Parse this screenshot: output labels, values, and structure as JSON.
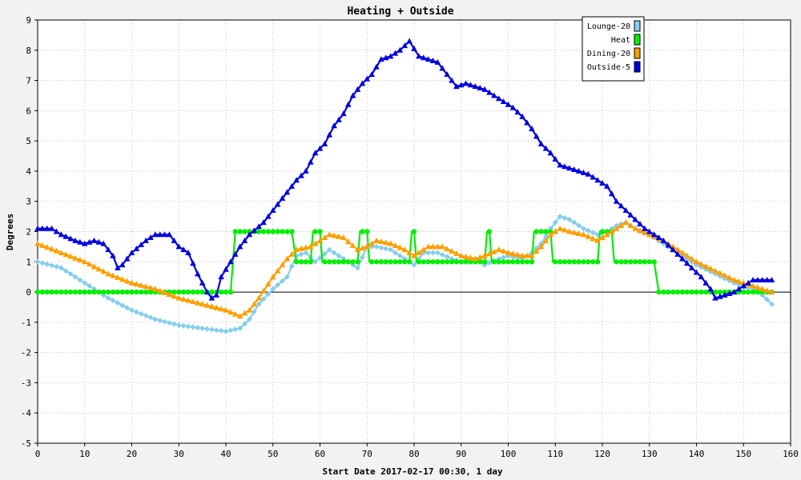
{
  "chart_data": {
    "type": "line",
    "title": "Heating + Outside",
    "xlabel": "Start Date 2017-02-17 00:30, 1 day",
    "ylabel": "Degrees",
    "xlim": [
      0,
      160
    ],
    "ylim": [
      -5,
      9
    ],
    "xticks": [
      0,
      10,
      20,
      30,
      40,
      50,
      60,
      70,
      80,
      90,
      100,
      110,
      120,
      130,
      140,
      150,
      160
    ],
    "yticks": [
      -5,
      -4,
      -3,
      -2,
      -1,
      0,
      1,
      2,
      3,
      4,
      5,
      6,
      7,
      8,
      9
    ],
    "grid": true,
    "legend_position": "top-right",
    "series": [
      {
        "name": "Lounge-20",
        "color": "#87ceeb",
        "marker": "diamond",
        "points": [
          [
            0,
            1.0
          ],
          [
            5,
            0.8
          ],
          [
            10,
            0.3
          ],
          [
            15,
            -0.2
          ],
          [
            20,
            -0.6
          ],
          [
            25,
            -0.9
          ],
          [
            30,
            -1.1
          ],
          [
            35,
            -1.2
          ],
          [
            40,
            -1.3
          ],
          [
            43,
            -1.2
          ],
          [
            45,
            -0.9
          ],
          [
            47,
            -0.4
          ],
          [
            50,
            0.1
          ],
          [
            53,
            0.5
          ],
          [
            55,
            1.2
          ],
          [
            57,
            1.3
          ],
          [
            59,
            1.0
          ],
          [
            62,
            1.4
          ],
          [
            65,
            1.1
          ],
          [
            68,
            0.8
          ],
          [
            70,
            1.5
          ],
          [
            72,
            1.5
          ],
          [
            75,
            1.4
          ],
          [
            78,
            1.1
          ],
          [
            80,
            0.9
          ],
          [
            82,
            1.3
          ],
          [
            85,
            1.3
          ],
          [
            88,
            1.1
          ],
          [
            90,
            1.0
          ],
          [
            93,
            1.1
          ],
          [
            95,
            0.9
          ],
          [
            98,
            1.1
          ],
          [
            100,
            1.2
          ],
          [
            103,
            1.1
          ],
          [
            105,
            1.3
          ],
          [
            107,
            1.6
          ],
          [
            109,
            2.1
          ],
          [
            111,
            2.5
          ],
          [
            113,
            2.4
          ],
          [
            116,
            2.1
          ],
          [
            119,
            1.9
          ],
          [
            121,
            2.0
          ],
          [
            123,
            2.2
          ],
          [
            125,
            2.3
          ],
          [
            128,
            2.0
          ],
          [
            130,
            1.9
          ],
          [
            133,
            1.6
          ],
          [
            136,
            1.3
          ],
          [
            140,
            0.9
          ],
          [
            144,
            0.6
          ],
          [
            148,
            0.3
          ],
          [
            152,
            0.1
          ],
          [
            154,
            -0.1
          ],
          [
            156,
            -0.4
          ]
        ]
      },
      {
        "name": "Heat",
        "color": "#00ee00",
        "marker": "circle",
        "points": [
          [
            0,
            0
          ],
          [
            41,
            0
          ],
          [
            42,
            2
          ],
          [
            54,
            2
          ],
          [
            55,
            1
          ],
          [
            58,
            1
          ],
          [
            58.5,
            2
          ],
          [
            60,
            2
          ],
          [
            60.5,
            1
          ],
          [
            68,
            1
          ],
          [
            68.5,
            2
          ],
          [
            70,
            2
          ],
          [
            70.5,
            1
          ],
          [
            79,
            1
          ],
          [
            79.5,
            2
          ],
          [
            80,
            2
          ],
          [
            80.5,
            1
          ],
          [
            95,
            1
          ],
          [
            95.5,
            2
          ],
          [
            96,
            2
          ],
          [
            96.5,
            1
          ],
          [
            105,
            1
          ],
          [
            105.5,
            2
          ],
          [
            109,
            2
          ],
          [
            109.5,
            1
          ],
          [
            119,
            1
          ],
          [
            119.5,
            2
          ],
          [
            122,
            2
          ],
          [
            122.5,
            1
          ],
          [
            131,
            1
          ],
          [
            132,
            0
          ],
          [
            156,
            0
          ]
        ]
      },
      {
        "name": "Dining-20",
        "color": "#ff9f00",
        "marker": "triangle",
        "points": [
          [
            0,
            1.6
          ],
          [
            5,
            1.3
          ],
          [
            10,
            1.0
          ],
          [
            15,
            0.6
          ],
          [
            20,
            0.3
          ],
          [
            25,
            0.1
          ],
          [
            30,
            -0.2
          ],
          [
            35,
            -0.4
          ],
          [
            40,
            -0.6
          ],
          [
            43,
            -0.8
          ],
          [
            45,
            -0.6
          ],
          [
            47,
            -0.2
          ],
          [
            50,
            0.5
          ],
          [
            53,
            1.1
          ],
          [
            55,
            1.4
          ],
          [
            58,
            1.5
          ],
          [
            60,
            1.7
          ],
          [
            62,
            1.9
          ],
          [
            65,
            1.8
          ],
          [
            68,
            1.4
          ],
          [
            70,
            1.5
          ],
          [
            72,
            1.7
          ],
          [
            75,
            1.6
          ],
          [
            78,
            1.4
          ],
          [
            80,
            1.2
          ],
          [
            83,
            1.5
          ],
          [
            86,
            1.5
          ],
          [
            90,
            1.2
          ],
          [
            93,
            1.1
          ],
          [
            95,
            1.2
          ],
          [
            98,
            1.4
          ],
          [
            100,
            1.3
          ],
          [
            103,
            1.2
          ],
          [
            105,
            1.2
          ],
          [
            107,
            1.5
          ],
          [
            109,
            1.9
          ],
          [
            111,
            2.1
          ],
          [
            113,
            2.0
          ],
          [
            116,
            1.9
          ],
          [
            119,
            1.7
          ],
          [
            121,
            1.9
          ],
          [
            123,
            2.1
          ],
          [
            125,
            2.3
          ],
          [
            127,
            2.1
          ],
          [
            130,
            1.9
          ],
          [
            133,
            1.7
          ],
          [
            136,
            1.4
          ],
          [
            140,
            1.0
          ],
          [
            144,
            0.7
          ],
          [
            148,
            0.4
          ],
          [
            152,
            0.2
          ],
          [
            156,
            0.0
          ]
        ]
      },
      {
        "name": "Outside-5",
        "color": "#0000dd",
        "marker": "triangle",
        "points": [
          [
            0,
            2.1
          ],
          [
            3,
            2.1
          ],
          [
            5,
            1.9
          ],
          [
            8,
            1.7
          ],
          [
            10,
            1.6
          ],
          [
            12,
            1.7
          ],
          [
            14,
            1.6
          ],
          [
            16,
            1.2
          ],
          [
            17,
            0.8
          ],
          [
            18,
            0.9
          ],
          [
            20,
            1.3
          ],
          [
            23,
            1.7
          ],
          [
            25,
            1.9
          ],
          [
            28,
            1.9
          ],
          [
            30,
            1.5
          ],
          [
            32,
            1.3
          ],
          [
            34,
            0.6
          ],
          [
            36,
            0.0
          ],
          [
            37,
            -0.2
          ],
          [
            38,
            -0.1
          ],
          [
            39,
            0.5
          ],
          [
            41,
            1.0
          ],
          [
            43,
            1.5
          ],
          [
            45,
            1.9
          ],
          [
            48,
            2.3
          ],
          [
            50,
            2.7
          ],
          [
            53,
            3.3
          ],
          [
            55,
            3.7
          ],
          [
            57,
            4.0
          ],
          [
            59,
            4.6
          ],
          [
            61,
            4.9
          ],
          [
            63,
            5.5
          ],
          [
            65,
            5.9
          ],
          [
            67,
            6.5
          ],
          [
            69,
            6.9
          ],
          [
            71,
            7.2
          ],
          [
            73,
            7.7
          ],
          [
            75,
            7.8
          ],
          [
            77,
            8.0
          ],
          [
            79,
            8.3
          ],
          [
            81,
            7.8
          ],
          [
            83,
            7.7
          ],
          [
            85,
            7.6
          ],
          [
            87,
            7.2
          ],
          [
            89,
            6.8
          ],
          [
            91,
            6.9
          ],
          [
            93,
            6.8
          ],
          [
            95,
            6.7
          ],
          [
            97,
            6.5
          ],
          [
            99,
            6.3
          ],
          [
            101,
            6.1
          ],
          [
            103,
            5.8
          ],
          [
            105,
            5.4
          ],
          [
            107,
            4.9
          ],
          [
            109,
            4.6
          ],
          [
            111,
            4.2
          ],
          [
            113,
            4.1
          ],
          [
            115,
            4.0
          ],
          [
            117,
            3.9
          ],
          [
            119,
            3.7
          ],
          [
            121,
            3.5
          ],
          [
            123,
            3.0
          ],
          [
            125,
            2.7
          ],
          [
            127,
            2.4
          ],
          [
            129,
            2.1
          ],
          [
            131,
            1.9
          ],
          [
            133,
            1.7
          ],
          [
            135,
            1.4
          ],
          [
            137,
            1.1
          ],
          [
            139,
            0.8
          ],
          [
            141,
            0.5
          ],
          [
            143,
            0.1
          ],
          [
            144,
            -0.2
          ],
          [
            146,
            -0.1
          ],
          [
            148,
            0.0
          ],
          [
            150,
            0.2
          ],
          [
            152,
            0.4
          ],
          [
            154,
            0.4
          ],
          [
            156,
            0.4
          ]
        ]
      }
    ]
  }
}
